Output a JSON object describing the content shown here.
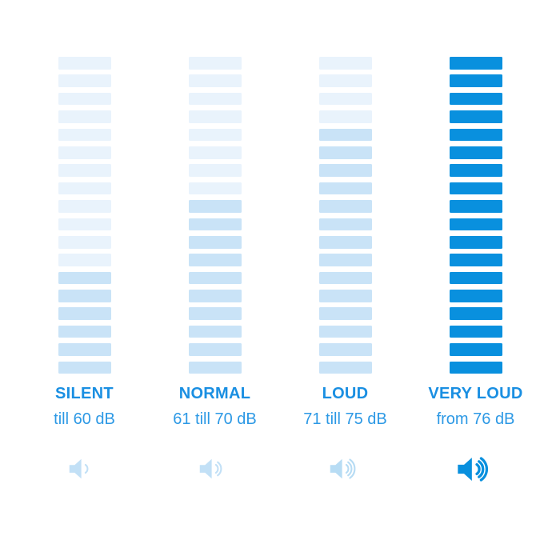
{
  "background": "#ffffff",
  "chart_data": {
    "type": "bar",
    "title": "",
    "description": "Noise level infographic: four 18-segment vertical volume meters with increasing fill intensity from SILENT to VERY LOUD",
    "segments_per_column": 18,
    "legend_position": "none",
    "grid": false,
    "colors": {
      "faint": "#e9f3fc",
      "medium": "#c9e3f7",
      "solid": "#0990de"
    },
    "text_colors": {
      "heading": "#1a8fe2",
      "subtitle": "#2d99e5"
    },
    "categories": [
      "SILENT",
      "NORMAL",
      "LOUD",
      "VERY LOUD"
    ],
    "columns": [
      {
        "label": "SILENT",
        "range": "till 60 dB",
        "min_db": null,
        "max_db": 60,
        "faint_segments": 12,
        "active_segments": 6,
        "active_color_key": "medium",
        "speaker_waves": 1,
        "speaker_color": "#c2e0f6",
        "speaker_bold": false
      },
      {
        "label": "NORMAL",
        "range": "61 till 70 dB",
        "min_db": 61,
        "max_db": 70,
        "faint_segments": 8,
        "active_segments": 10,
        "active_color_key": "medium",
        "speaker_waves": 2,
        "speaker_color": "#c2e0f6",
        "speaker_bold": false
      },
      {
        "label": "LOUD",
        "range": "71 till 75 dB",
        "min_db": 71,
        "max_db": 75,
        "faint_segments": 4,
        "active_segments": 14,
        "active_color_key": "medium",
        "speaker_waves": 3,
        "speaker_color": "#b7dcf4",
        "speaker_bold": false
      },
      {
        "label": "VERY LOUD",
        "range": "from 76 dB",
        "min_db": 76,
        "max_db": null,
        "faint_segments": 0,
        "active_segments": 18,
        "active_color_key": "solid",
        "speaker_waves": 3,
        "speaker_color": "#0990de",
        "speaker_bold": true
      }
    ]
  }
}
